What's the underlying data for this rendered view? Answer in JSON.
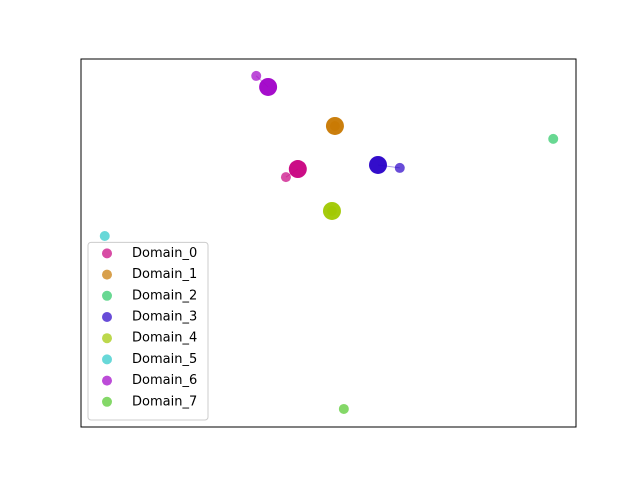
{
  "chart_data": {
    "type": "scatter",
    "xlim": [
      0,
      1
    ],
    "ylim": [
      0,
      1
    ],
    "legend": "lower left",
    "series": [
      {
        "name": "Domain_0",
        "color": "#c8007f",
        "x": [
          0.414
        ],
        "y": [
          0.679
        ],
        "center_x": 0.438,
        "center_y": 0.701
      },
      {
        "name": "Domain_1",
        "color": "#c87800",
        "x": [
          0.513
        ],
        "y": [
          0.818
        ],
        "center_x": 0.513,
        "center_y": 0.818
      },
      {
        "name": "Domain_2",
        "color": "#28c864",
        "x": [
          0.954
        ],
        "y": [
          0.783
        ]
      },
      {
        "name": "Domain_3",
        "color": "#2800c8",
        "x": [
          0.644
        ],
        "y": [
          0.704
        ],
        "center_x": 0.6,
        "center_y": 0.712
      },
      {
        "name": "Domain_4",
        "color": "#a0c800",
        "x": [
          0.507
        ],
        "y": [
          0.587
        ],
        "center_x": 0.507,
        "center_y": 0.587
      },
      {
        "name": "Domain_5",
        "color": "#28c8c8",
        "x": [
          0.048
        ],
        "y": [
          0.519
        ]
      },
      {
        "name": "Domain_6",
        "color": "#a000c8",
        "x": [
          0.354
        ],
        "y": [
          0.954
        ],
        "center_x": 0.378,
        "center_y": 0.924
      },
      {
        "name": "Domain_7",
        "color": "#50c828",
        "x": [
          0.531
        ],
        "y": [
          0.049
        ]
      }
    ]
  }
}
